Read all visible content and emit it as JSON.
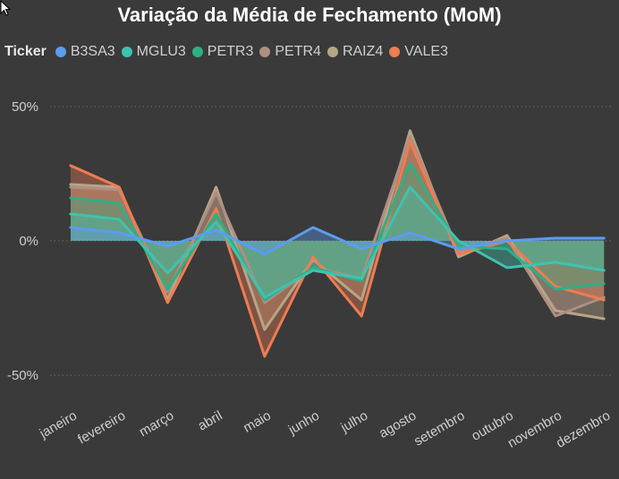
{
  "chart_data": {
    "type": "area",
    "title": "Variação da Média de Fechamento (MoM)",
    "xlabel": "",
    "ylabel": "",
    "legend_title": "Ticker",
    "legend_position": "top-left",
    "categories": [
      "janeiro",
      "fevereiro",
      "março",
      "abril",
      "maio",
      "junho",
      "julho",
      "agosto",
      "setembro",
      "outubro",
      "novembro",
      "dezembro"
    ],
    "yticks": [
      {
        "value": 50,
        "label": "50%"
      },
      {
        "value": 0,
        "label": "0%"
      },
      {
        "value": -50,
        "label": "-50%"
      }
    ],
    "ylim": [
      -62,
      62
    ],
    "grid": true,
    "series": [
      {
        "name": "RAIZ4",
        "color": "#b5a688",
        "values": [
          21,
          20,
          -22,
          20,
          -33,
          -7,
          -22,
          41,
          -6,
          2,
          -26,
          -29
        ]
      },
      {
        "name": "PETR4",
        "color": "#b08e82",
        "values": [
          20,
          19,
          -19,
          18,
          -23,
          -10,
          -14,
          39,
          -4,
          1,
          -28,
          -21
        ]
      },
      {
        "name": "VALE3",
        "color": "#f07c52",
        "values": [
          28,
          20,
          -23,
          12,
          -43,
          -6,
          -28,
          37,
          -5,
          0,
          -17,
          -22
        ]
      },
      {
        "name": "PETR3",
        "color": "#2eaf86",
        "values": [
          16,
          14,
          -18,
          10,
          -22,
          -10,
          -15,
          29,
          -2,
          -3,
          -18,
          -16
        ]
      },
      {
        "name": "MGLU3",
        "color": "#3cc4b0",
        "values": [
          10,
          8,
          -12,
          7,
          -21,
          -11,
          -14,
          20,
          0,
          -10,
          -8,
          -11
        ]
      },
      {
        "name": "B3SA3",
        "color": "#5b9cf0",
        "values": [
          5,
          3,
          -2,
          4,
          -5,
          5,
          -3,
          3,
          -3,
          0,
          1,
          1
        ]
      }
    ]
  }
}
